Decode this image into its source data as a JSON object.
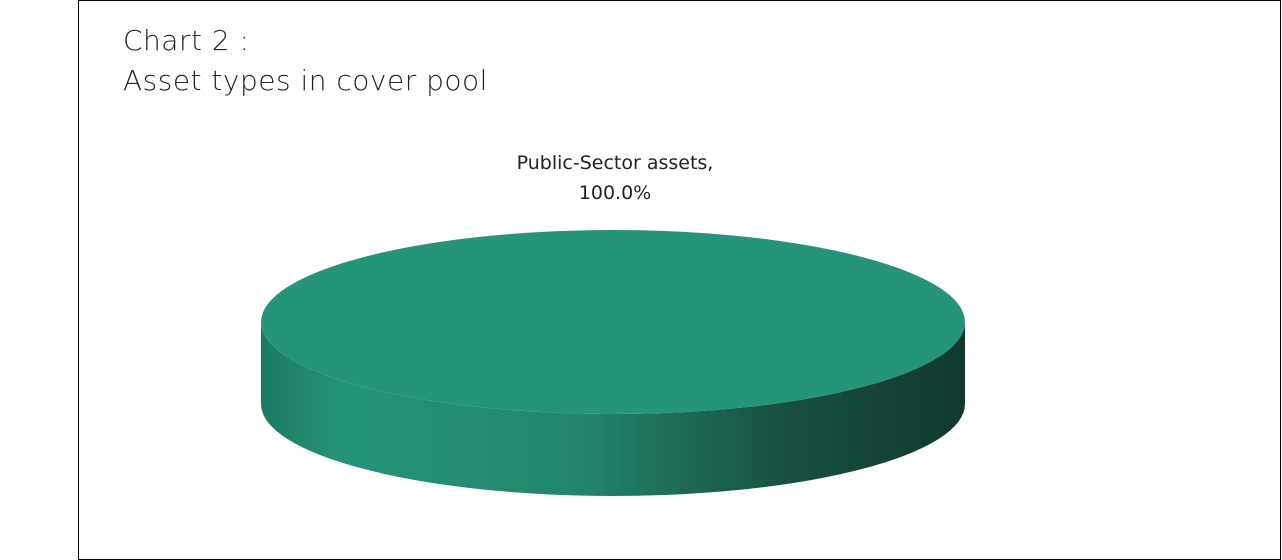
{
  "chart_data": {
    "type": "pie",
    "title_lines": [
      "Chart 2 :",
      "Asset types in cover pool"
    ],
    "slices": [
      {
        "label": "Public-Sector assets,",
        "value_label": "100.0%",
        "value": 100.0,
        "color": "#259478"
      }
    ],
    "style": "3d"
  }
}
